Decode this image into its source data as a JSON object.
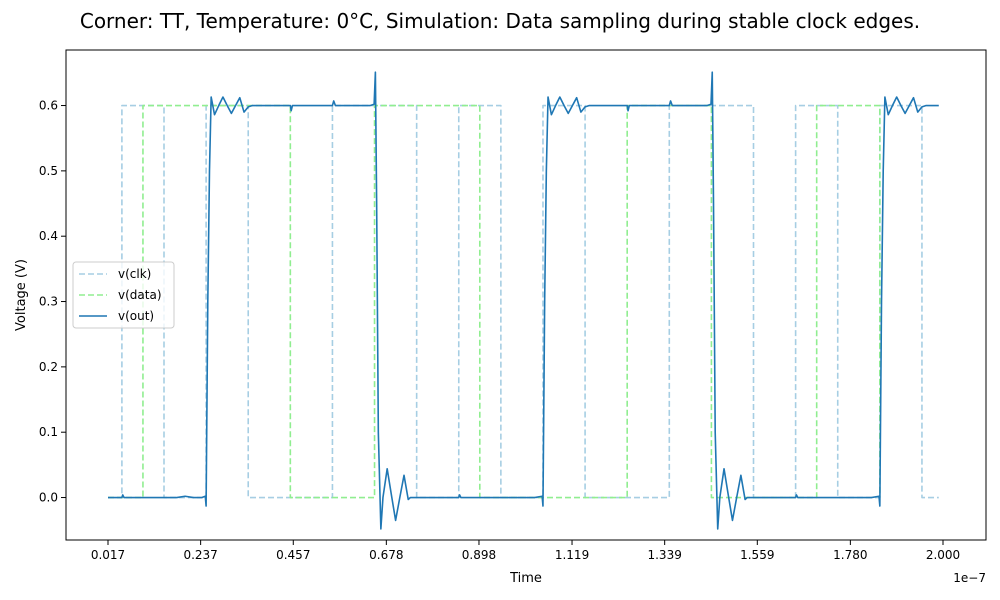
{
  "chart_data": {
    "type": "line",
    "title": "Corner: TT, Temperature: 0°C, Simulation: Data sampling during stable clock edges.",
    "xlabel": "Time",
    "ylabel": "Voltage (V)",
    "x_offset_text": "1e−7",
    "xlim": [
      0.017,
      2.0
    ],
    "ylim": [
      -0.065,
      0.685
    ],
    "x_ticks": [
      "0.017",
      "0.237",
      "0.457",
      "0.678",
      "0.898",
      "1.119",
      "1.339",
      "1.559",
      "1.780",
      "2.000"
    ],
    "y_ticks": [
      "0.0",
      "0.1",
      "0.2",
      "0.3",
      "0.4",
      "0.5",
      "0.6"
    ],
    "legend_position": "center-left",
    "series": [
      {
        "name": "v(clk)",
        "style": "dashed",
        "color": "#a6cee3",
        "x": [
          0.017,
          0.05,
          0.05,
          0.15,
          0.15,
          0.25,
          0.25,
          0.35,
          0.35,
          0.55,
          0.55,
          0.75,
          0.75,
          0.85,
          0.85,
          0.95,
          0.95,
          1.05,
          1.05,
          1.15,
          1.15,
          1.35,
          1.35,
          1.55,
          1.55,
          1.65,
          1.65,
          1.75,
          1.75,
          1.85,
          1.85,
          1.95,
          1.95,
          1.99
        ],
        "y": [
          0.0,
          0.0,
          0.6,
          0.6,
          0.0,
          0.0,
          0.6,
          0.6,
          0.0,
          0.0,
          0.6,
          0.6,
          0.0,
          0.0,
          0.6,
          0.6,
          0.0,
          0.0,
          0.6,
          0.6,
          0.0,
          0.0,
          0.6,
          0.6,
          0.0,
          0.0,
          0.6,
          0.6,
          0.0,
          0.0,
          0.6,
          0.6,
          0.0,
          0.0
        ]
      },
      {
        "name": "v(data)",
        "style": "dashed",
        "color": "#90ee90",
        "x": [
          0.017,
          0.1,
          0.1,
          0.45,
          0.45,
          0.65,
          0.65,
          0.9,
          0.9,
          1.25,
          1.25,
          1.45,
          1.45,
          1.7,
          1.7,
          1.85,
          1.85
        ],
        "y": [
          0.0,
          0.0,
          0.6,
          0.6,
          0.0,
          0.0,
          0.6,
          0.6,
          0.0,
          0.0,
          0.6,
          0.6,
          0.0,
          0.0,
          0.6,
          0.6,
          0.0
        ]
      },
      {
        "name": "v(out)",
        "style": "solid",
        "color": "#1f77b4",
        "x": [
          0.017,
          0.05,
          0.052,
          0.055,
          0.08,
          0.12,
          0.15,
          0.18,
          0.2,
          0.22,
          0.24,
          0.248,
          0.25,
          0.254,
          0.258,
          0.262,
          0.27,
          0.28,
          0.29,
          0.3,
          0.31,
          0.32,
          0.33,
          0.34,
          0.35,
          0.36,
          0.37,
          0.4,
          0.44,
          0.45,
          0.452,
          0.455,
          0.48,
          0.52,
          0.55,
          0.553,
          0.557,
          0.56,
          0.6,
          0.64,
          0.649,
          0.652,
          0.655,
          0.659,
          0.665,
          0.67,
          0.68,
          0.69,
          0.7,
          0.71,
          0.72,
          0.73,
          0.735,
          0.74,
          0.75,
          0.8,
          0.85,
          0.852,
          0.855,
          0.9,
          0.95,
          1.0,
          1.03,
          1.048,
          1.05,
          1.054,
          1.058,
          1.062,
          1.07,
          1.08,
          1.09,
          1.1,
          1.11,
          1.12,
          1.13,
          1.14,
          1.15,
          1.16,
          1.17,
          1.2,
          1.24,
          1.25,
          1.252,
          1.255,
          1.28,
          1.32,
          1.35,
          1.353,
          1.357,
          1.36,
          1.4,
          1.44,
          1.449,
          1.452,
          1.455,
          1.459,
          1.465,
          1.47,
          1.48,
          1.49,
          1.5,
          1.51,
          1.52,
          1.53,
          1.535,
          1.54,
          1.55,
          1.6,
          1.65,
          1.652,
          1.655,
          1.7,
          1.75,
          1.8,
          1.83,
          1.848,
          1.85,
          1.854,
          1.858,
          1.862,
          1.87,
          1.88,
          1.89,
          1.9,
          1.91,
          1.92,
          1.93,
          1.94,
          1.95,
          1.96,
          1.97,
          1.99
        ],
        "y": [
          0.0,
          0.0,
          0.004,
          0.0,
          0.0,
          0.0,
          0.0,
          0.0,
          0.002,
          0.0,
          0.0,
          0.002,
          -0.013,
          0.3,
          0.5,
          0.613,
          0.586,
          0.6,
          0.613,
          0.6,
          0.588,
          0.6,
          0.612,
          0.59,
          0.598,
          0.6,
          0.6,
          0.6,
          0.6,
          0.6,
          0.592,
          0.6,
          0.6,
          0.6,
          0.6,
          0.607,
          0.6,
          0.6,
          0.6,
          0.6,
          0.602,
          0.651,
          0.45,
          0.1,
          -0.048,
          0.0,
          0.044,
          0.004,
          -0.035,
          0.0,
          0.034,
          -0.003,
          0.0,
          0.0,
          0.0,
          0.0,
          0.0,
          0.004,
          0.0,
          0.0,
          0.0,
          0.0,
          0.0,
          0.002,
          -0.013,
          0.3,
          0.5,
          0.613,
          0.586,
          0.6,
          0.613,
          0.6,
          0.588,
          0.6,
          0.612,
          0.59,
          0.598,
          0.6,
          0.6,
          0.6,
          0.6,
          0.6,
          0.592,
          0.6,
          0.6,
          0.6,
          0.6,
          0.607,
          0.6,
          0.6,
          0.6,
          0.6,
          0.602,
          0.651,
          0.45,
          0.1,
          -0.048,
          0.0,
          0.044,
          0.004,
          -0.035,
          0.0,
          0.034,
          -0.003,
          0.0,
          0.0,
          0.0,
          0.0,
          0.0,
          0.004,
          0.0,
          0.0,
          0.0,
          0.0,
          0.0,
          0.002,
          -0.013,
          0.3,
          0.5,
          0.613,
          0.586,
          0.6,
          0.613,
          0.6,
          0.588,
          0.6,
          0.612,
          0.59,
          0.598,
          0.6,
          0.6,
          0.6
        ]
      }
    ]
  }
}
